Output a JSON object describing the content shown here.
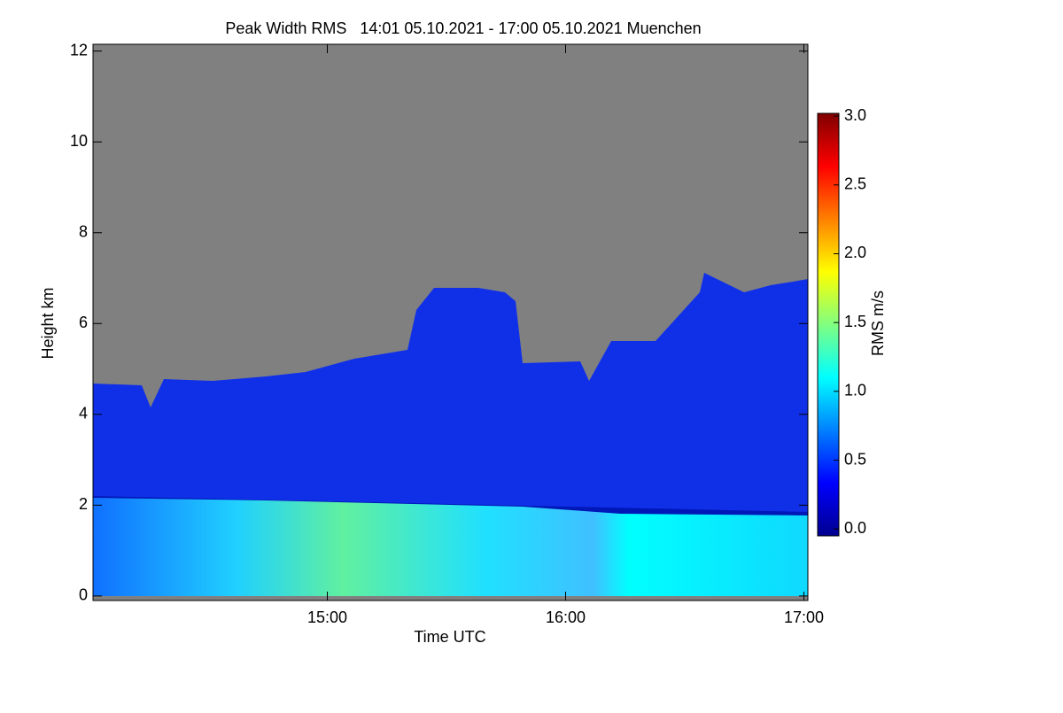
{
  "chart_data": {
    "type": "heatmap",
    "title": "Peak Width RMS   14:01 05.10.2021 - 17:00 05.10.2021 Muenchen",
    "x_label": "Time UTC",
    "y_label": "Height km",
    "colorbar_label": "RMS m/s",
    "xlim": [
      841,
      1021
    ],
    "xticks": [
      {
        "value": 900,
        "label": "15:00"
      },
      {
        "value": 960,
        "label": "16:00"
      },
      {
        "value": 1020,
        "label": "17:00"
      }
    ],
    "ylim": [
      -0.1,
      12.15
    ],
    "yticks": [
      0,
      2,
      4,
      6,
      8,
      10,
      12
    ],
    "clim": [
      -0.05,
      3.02
    ],
    "cticks": [
      {
        "value": 0,
        "label": "0.0"
      },
      {
        "value": 0.5,
        "label": "0.5"
      },
      {
        "value": 1,
        "label": "1.0"
      },
      {
        "value": 1.5,
        "label": "1.5"
      },
      {
        "value": 2,
        "label": "2.0"
      },
      {
        "value": 2.5,
        "label": "2.5"
      },
      {
        "value": 3,
        "label": "3.0"
      }
    ],
    "colormap": [
      "#00008f",
      "#0000ff",
      "#0080ff",
      "#00ffff",
      "#80ff80",
      "#ffff00",
      "#ff8000",
      "#ff0000",
      "#800000"
    ],
    "missing_color": "#808080"
  }
}
